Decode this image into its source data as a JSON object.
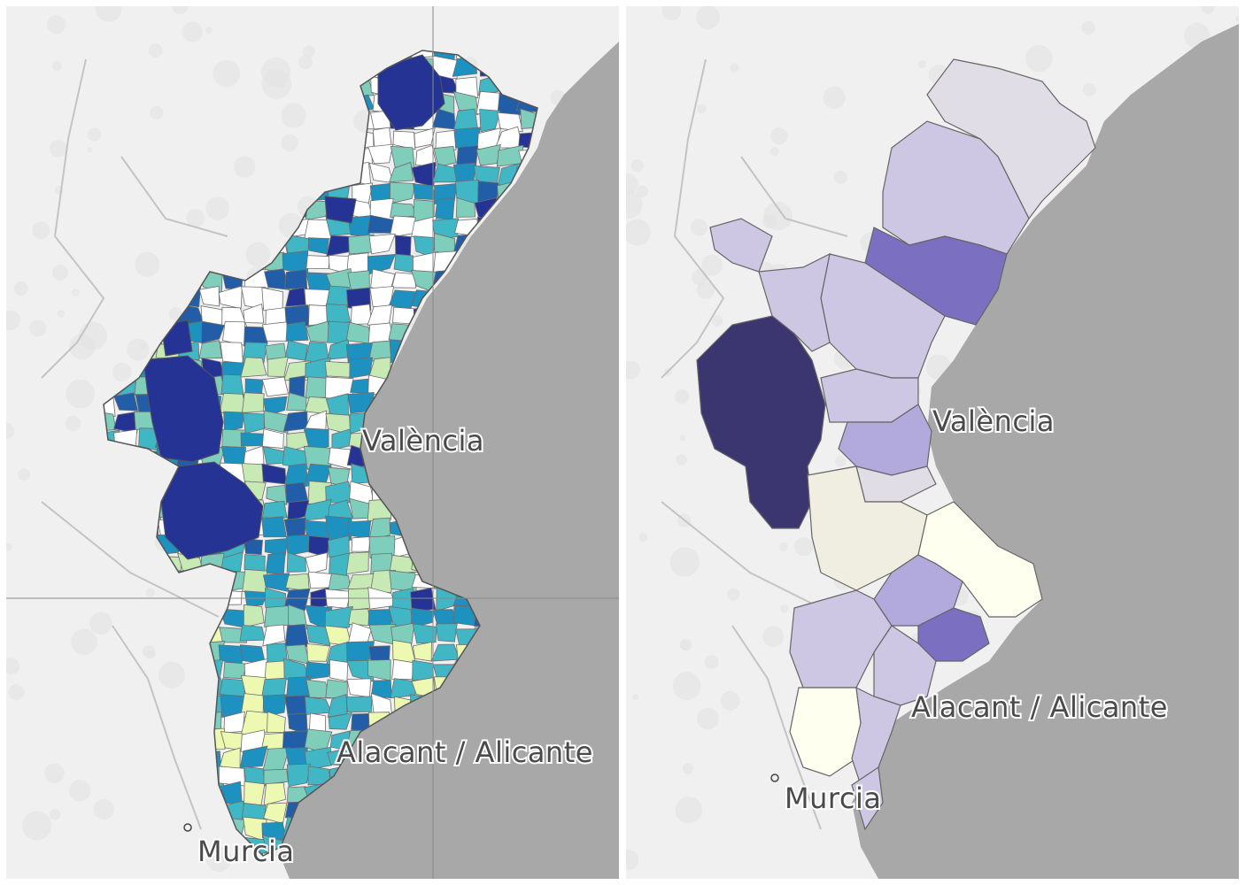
{
  "colors": {
    "land": "#f0f0f0",
    "sea": "#a8a8a8",
    "left_scale": [
      "#ffffff",
      "#edf8b1",
      "#c7e9b4",
      "#7fcdbb",
      "#41b6c4",
      "#1d91c0",
      "#225ea8",
      "#253494"
    ],
    "right_scale": [
      "#fffff0",
      "#f0eee0",
      "#e0dde6",
      "#cdc7e4",
      "#b2aadd",
      "#9b91d5",
      "#7a6fc0",
      "#3b3670"
    ]
  },
  "maps": [
    {
      "id": "municipalities",
      "labels": {
        "valencia": "València",
        "alicante": "Alacant / Alicante",
        "murcia": "Murcia"
      }
    },
    {
      "id": "comarques",
      "labels": {
        "valencia": "València",
        "alicante": "Alacant / Alicante",
        "murcia": "Murcia"
      }
    }
  ]
}
